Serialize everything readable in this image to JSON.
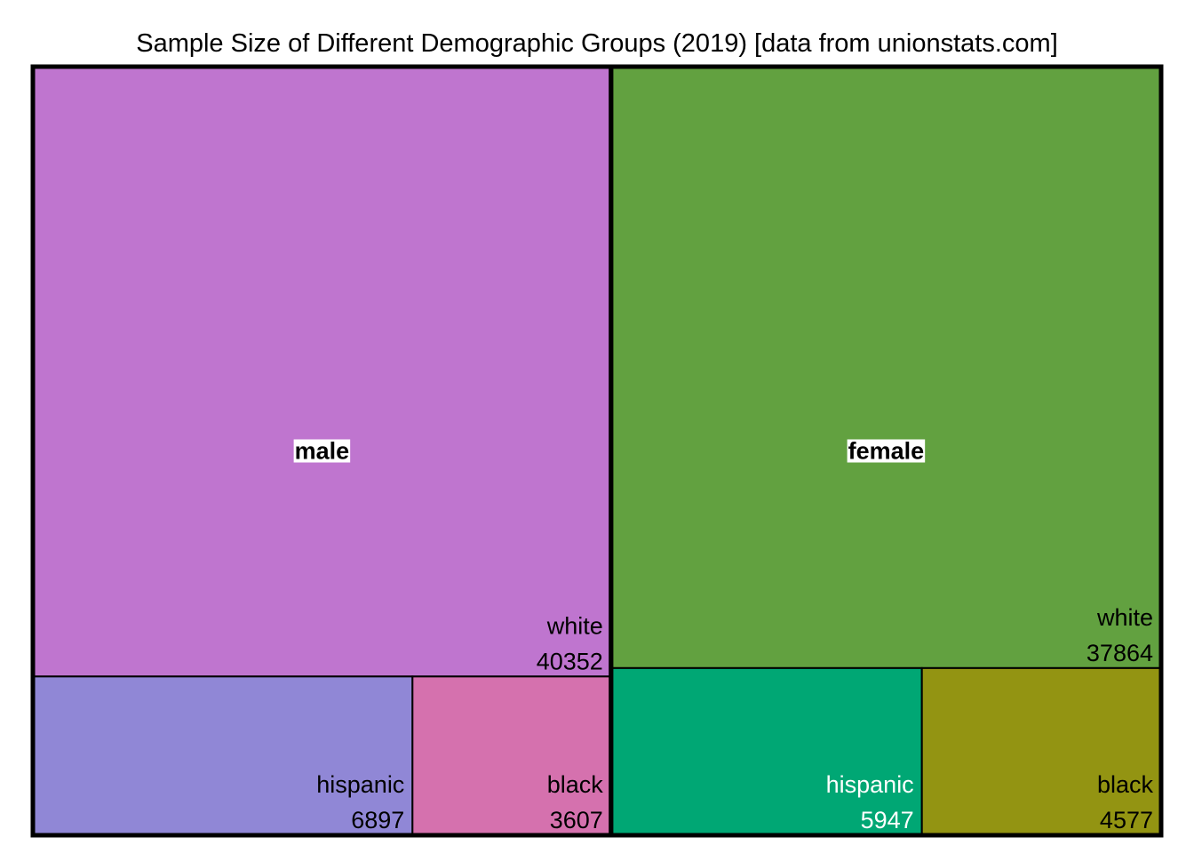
{
  "chart_data": {
    "type": "treemap",
    "title": "Sample Size of Different Demographic Groups (2019) [data from unionstats.com]",
    "groups": [
      {
        "name": "male",
        "children": [
          {
            "name": "white",
            "value": 40352,
            "color": "#BF75CF",
            "text_color": "#000000"
          },
          {
            "name": "hispanic",
            "value": 6897,
            "color": "#9087D6",
            "text_color": "#000000"
          },
          {
            "name": "black",
            "value": 3607,
            "color": "#D571AE",
            "text_color": "#000000"
          }
        ]
      },
      {
        "name": "female",
        "children": [
          {
            "name": "white",
            "value": 37864,
            "color": "#62A140",
            "text_color": "#000000"
          },
          {
            "name": "hispanic",
            "value": 5947,
            "color": "#00A774",
            "text_color": "#FFFFFF"
          },
          {
            "name": "black",
            "value": 4577,
            "color": "#939412",
            "text_color": "#000000"
          }
        ]
      }
    ]
  }
}
